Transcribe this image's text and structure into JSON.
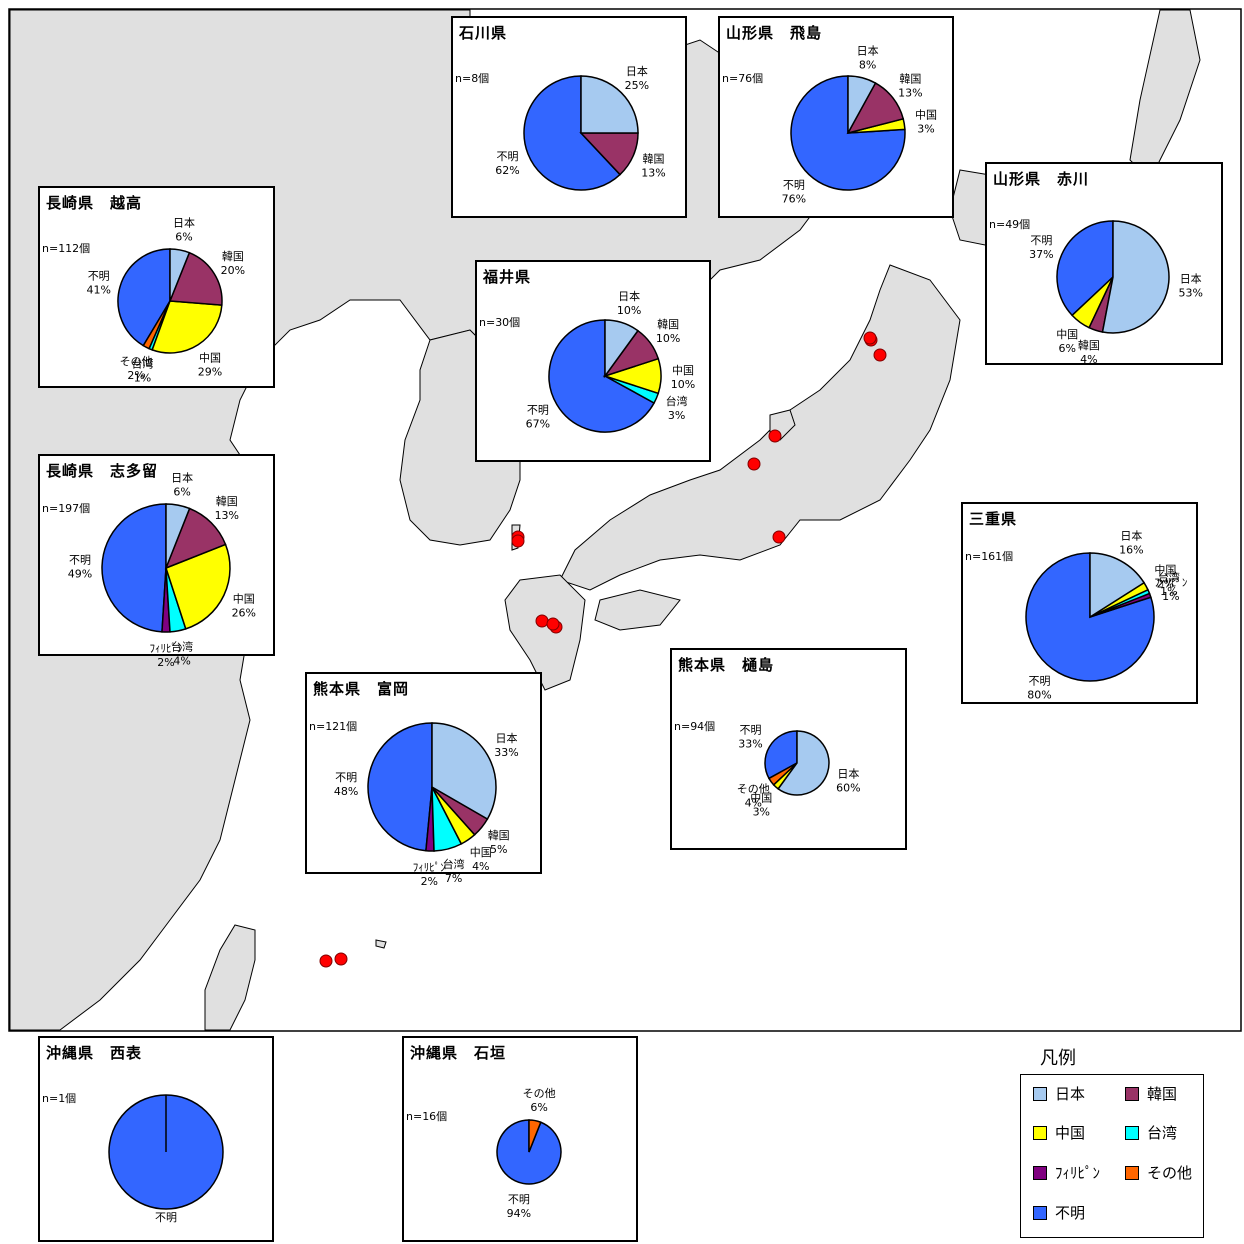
{
  "legend": {
    "title": "凡例",
    "items": [
      {
        "label": "日本",
        "color": "#A6CAF0"
      },
      {
        "label": "韓国",
        "color": "#993366"
      },
      {
        "label": "中国",
        "color": "#FFFF00"
      },
      {
        "label": "台湾",
        "color": "#00FFFF"
      },
      {
        "label": "ﾌｨﾘﾋﾟﾝ",
        "color": "#800080"
      },
      {
        "label": "その他",
        "color": "#FF6600"
      },
      {
        "label": "不明",
        "color": "#3366FF"
      }
    ]
  },
  "map_markers_count": 13,
  "chart_data": [
    {
      "type": "pie",
      "title": "石川県",
      "n": "n=8個",
      "slices": [
        {
          "category": "日本",
          "value": 25,
          "label": "日本",
          "pct": "25%"
        },
        {
          "category": "韓国",
          "value": 13,
          "label": "韓国",
          "pct": "13%"
        },
        {
          "category": "不明",
          "value": 62,
          "label": "不明",
          "pct": "62%"
        }
      ]
    },
    {
      "type": "pie",
      "title": "山形県　飛島",
      "n": "n=76個",
      "slices": [
        {
          "category": "日本",
          "value": 8,
          "label": "日本",
          "pct": "8%"
        },
        {
          "category": "韓国",
          "value": 13,
          "label": "韓国",
          "pct": "13%"
        },
        {
          "category": "中国",
          "value": 3,
          "label": "中国",
          "pct": "3%"
        },
        {
          "category": "不明",
          "value": 76,
          "label": "不明",
          "pct": "76%"
        }
      ]
    },
    {
      "type": "pie",
      "title": "長崎県　越高",
      "n": "n=112個",
      "slices": [
        {
          "category": "日本",
          "value": 6,
          "label": "日本",
          "pct": "6%"
        },
        {
          "category": "韓国",
          "value": 20,
          "label": "韓国",
          "pct": "20%"
        },
        {
          "category": "中国",
          "value": 29,
          "label": "中国",
          "pct": "29%"
        },
        {
          "category": "台湾",
          "value": 1,
          "label": "台湾",
          "pct": "1%"
        },
        {
          "category": "その他",
          "value": 2,
          "label": "その他",
          "pct": "2%"
        },
        {
          "category": "不明",
          "value": 41,
          "label": "不明",
          "pct": "41%"
        }
      ]
    },
    {
      "type": "pie",
      "title": "山形県　赤川",
      "n": "n=49個",
      "slices": [
        {
          "category": "日本",
          "value": 53,
          "label": "日本",
          "pct": "53%"
        },
        {
          "category": "韓国",
          "value": 4,
          "label": "韓国",
          "pct": "4%"
        },
        {
          "category": "中国",
          "value": 6,
          "label": "中国",
          "pct": "6%"
        },
        {
          "category": "不明",
          "value": 37,
          "label": "不明",
          "pct": "37%"
        }
      ]
    },
    {
      "type": "pie",
      "title": "福井県",
      "n": "n=30個",
      "slices": [
        {
          "category": "日本",
          "value": 10,
          "label": "日本",
          "pct": "10%"
        },
        {
          "category": "韓国",
          "value": 10,
          "label": "韓国",
          "pct": "10%"
        },
        {
          "category": "中国",
          "value": 10,
          "label": "中国",
          "pct": "10%"
        },
        {
          "category": "台湾",
          "value": 3,
          "label": "台湾",
          "pct": "3%"
        },
        {
          "category": "不明",
          "value": 67,
          "label": "不明",
          "pct": "67%"
        }
      ]
    },
    {
      "type": "pie",
      "title": "長崎県　志多留",
      "n": "n=197個",
      "slices": [
        {
          "category": "日本",
          "value": 6,
          "label": "日本",
          "pct": "6%"
        },
        {
          "category": "韓国",
          "value": 13,
          "label": "韓国",
          "pct": "13%"
        },
        {
          "category": "中国",
          "value": 26,
          "label": "中国",
          "pct": "26%"
        },
        {
          "category": "台湾",
          "value": 4,
          "label": "台湾",
          "pct": "4%"
        },
        {
          "category": "ﾌｨﾘﾋﾟﾝ",
          "value": 2,
          "label": "ﾌｨﾘﾋﾟﾝ",
          "pct": "2%"
        },
        {
          "category": "不明",
          "value": 49,
          "label": "不明",
          "pct": "49%"
        }
      ]
    },
    {
      "type": "pie",
      "title": "三重県",
      "n": "n=161個",
      "slices": [
        {
          "category": "日本",
          "value": 16,
          "label": "日本",
          "pct": "16%"
        },
        {
          "category": "中国",
          "value": 2,
          "label": "中国",
          "pct": "2%"
        },
        {
          "category": "台湾",
          "value": 1,
          "label": "台湾",
          "pct": "1%"
        },
        {
          "category": "ﾌｨﾘﾋﾟﾝ",
          "value": 1,
          "label": "ﾌｨﾘﾋﾟﾝ",
          "pct": "1%"
        },
        {
          "category": "不明",
          "value": 80,
          "label": "不明",
          "pct": "80%"
        }
      ]
    },
    {
      "type": "pie",
      "title": "熊本県　樋島",
      "n": "n=94個",
      "slices": [
        {
          "category": "日本",
          "value": 60,
          "label": "日本",
          "pct": "60%"
        },
        {
          "category": "中国",
          "value": 3,
          "label": "中国",
          "pct": "3%"
        },
        {
          "category": "その他",
          "value": 4,
          "label": "その他",
          "pct": "4%"
        },
        {
          "category": "不明",
          "value": 33,
          "label": "不明",
          "pct": "33%"
        }
      ]
    },
    {
      "type": "pie",
      "title": "熊本県　富岡",
      "n": "n=121個",
      "slices": [
        {
          "category": "日本",
          "value": 33,
          "label": "日本",
          "pct": "33%"
        },
        {
          "category": "韓国",
          "value": 5,
          "label": "韓国",
          "pct": "5%"
        },
        {
          "category": "中国",
          "value": 4,
          "label": "中国",
          "pct": "4%"
        },
        {
          "category": "台湾",
          "value": 7,
          "label": "台湾",
          "pct": "7%"
        },
        {
          "category": "ﾌｨﾘﾋﾟﾝ",
          "value": 2,
          "label": "ﾌｨﾘﾋﾟﾝ",
          "pct": "2%"
        },
        {
          "category": "不明",
          "value": 48,
          "label": "不明",
          "pct": "48%"
        }
      ]
    },
    {
      "type": "pie",
      "title": "沖縄県　西表",
      "n": "n=1個",
      "slices": [
        {
          "category": "不明",
          "value": 100,
          "label": "不明",
          "pct": ""
        }
      ]
    },
    {
      "type": "pie",
      "title": "沖縄県　石垣",
      "n": "n=16個",
      "slices": [
        {
          "category": "その他",
          "value": 6,
          "label": "その他",
          "pct": "6%"
        },
        {
          "category": "不明",
          "value": 94,
          "label": "不明",
          "pct": "94%"
        }
      ]
    }
  ]
}
